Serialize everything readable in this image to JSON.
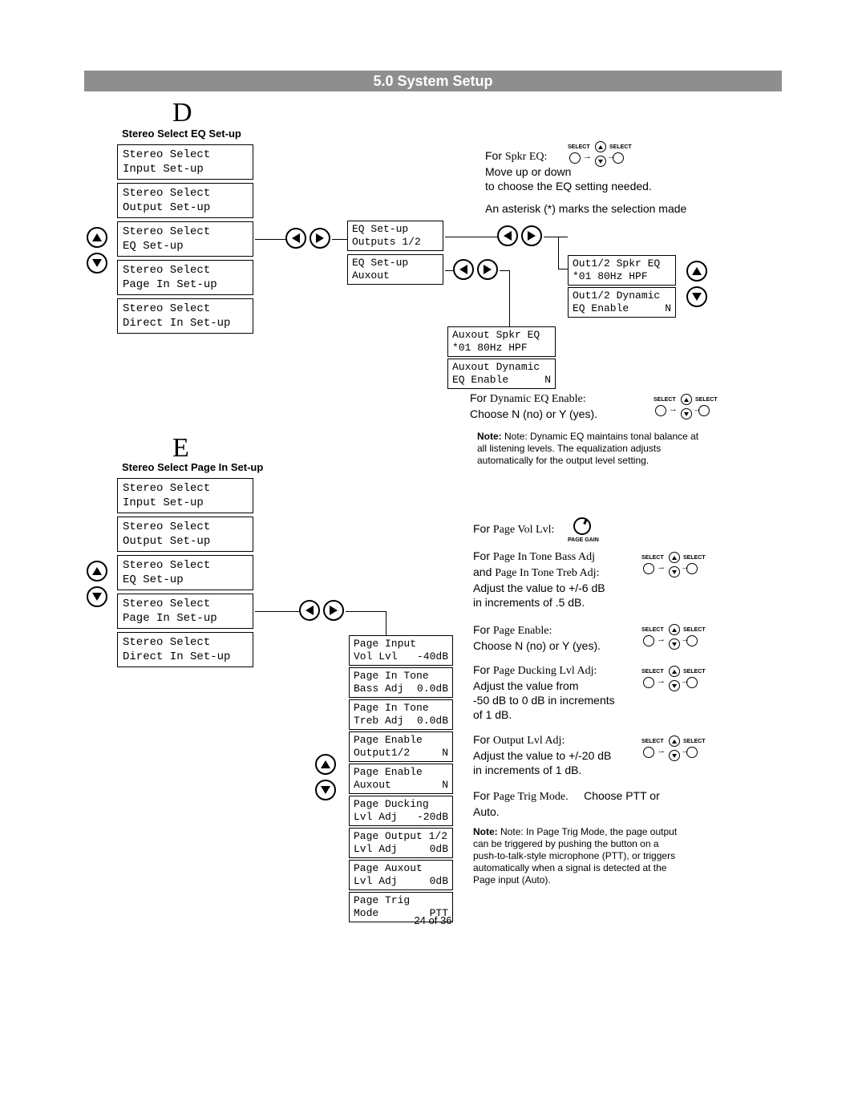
{
  "header": {
    "title": "5.0 System Setup"
  },
  "sectionD": {
    "letter": "D",
    "label": "Stereo Select EQ Set-up",
    "menu": [
      "Stereo Select\nInput Set-up",
      "Stereo Select\nOutput Set-up",
      "Stereo Select\nEQ Set-up",
      "Stereo Select\nPage In Set-up",
      "Stereo Select\nDirect In Set-up"
    ],
    "sub1": {
      "l1": "EQ Set-up",
      "l2": "Outputs 1/2"
    },
    "sub2": {
      "l1": "EQ Set-up",
      "l2": "Auxout"
    },
    "eq1": {
      "l1": "Out1/2 Spkr EQ",
      "l2": "*01 80Hz HPF"
    },
    "eq2": {
      "l1": "Out1/2 Dynamic",
      "l2a": "EQ Enable",
      "l2b": "N"
    },
    "aux1": {
      "l1": "Auxout Spkr EQ",
      "l2": "*01 80Hz HPF"
    },
    "aux2": {
      "l1": "Auxout Dynamic",
      "l2a": "EQ Enable",
      "l2b": "N"
    },
    "text_spkr": {
      "intro": "For",
      "item": "Spkr EQ:",
      "rest": "Move up or down\nto choose the EQ setting needed."
    },
    "text_asterisk": "An asterisk (*) marks the selection made",
    "text_dyn": {
      "intro": "For",
      "item": "Dynamic EQ Enable:",
      "rest": "Choose N (no) or Y (yes)."
    },
    "note": "Note:  Dynamic EQ maintains tonal balance at all listening levels. The equalization adjusts automatically for the output level setting."
  },
  "sectionE": {
    "letter": "E",
    "label": "Stereo Select Page In Set-up",
    "menu": [
      "Stereo Select\nInput Set-up",
      "Stereo Select\nOutput Set-up",
      "Stereo Select\nEQ Set-up",
      "Stereo Select\nPage In Set-up",
      "Stereo Select\nDirect In Set-up"
    ],
    "params": [
      {
        "l1": "Page Input",
        "l2a": "Vol Lvl",
        "l2b": "-40dB"
      },
      {
        "l1": "Page In Tone",
        "l2a": "Bass Adj",
        "l2b": "0.0dB"
      },
      {
        "l1": "Page In Tone",
        "l2a": "Treb Adj",
        "l2b": "0.0dB"
      },
      {
        "l1": "Page Enable",
        "l2a": "Output1/2",
        "l2b": "N"
      },
      {
        "l1": "Page Enable",
        "l2a": "Auxout",
        "l2b": "N"
      },
      {
        "l1": "Page Ducking",
        "l2a": "Lvl Adj",
        "l2b": "-20dB"
      },
      {
        "l1": "Page Output 1/2",
        "l2a": "Lvl Adj",
        "l2b": "0dB"
      },
      {
        "l1": "Page Auxout",
        "l2a": "Lvl Adj",
        "l2b": "0dB"
      },
      {
        "l1": "Page Trig",
        "l2a": "Mode",
        "l2b": "PTT"
      }
    ],
    "t_vol": {
      "p": "For",
      "i": "Page Vol Lvl:"
    },
    "t_tone": {
      "p": "For",
      "i1": "Page In Tone Bass Adj",
      "mid": "and",
      "i2": "Page In Tone Treb Adj:",
      "rest": "Adjust the value to +/-6 dB\nin increments of .5 dB."
    },
    "t_en": {
      "p": "For",
      "i": "Page Enable:",
      "rest": "Choose N (no) or Y (yes)."
    },
    "t_duck": {
      "p": "For",
      "i": "Page Ducking Lvl Adj:",
      "rest": "Adjust the value from\n-50 dB to 0 dB in increments\nof 1 dB."
    },
    "t_out": {
      "p": "For",
      "i": "Output Lvl Adj:",
      "rest": "Adjust the value to +/-20 dB\nin increments of 1 dB."
    },
    "t_trig": {
      "p": "For",
      "i": "Page Trig Mode.",
      "rest": "Choose PTT or Auto."
    },
    "note": "Note:  In Page Trig Mode, the page output can be triggered by pushing the button on a push-to-talk-style microphone (PTT), or triggers automatically when a signal is detected at the Page input (Auto)."
  },
  "footer": "24 of 36",
  "widget_label": "SELECT",
  "knob_label": "PAGE GAIN"
}
